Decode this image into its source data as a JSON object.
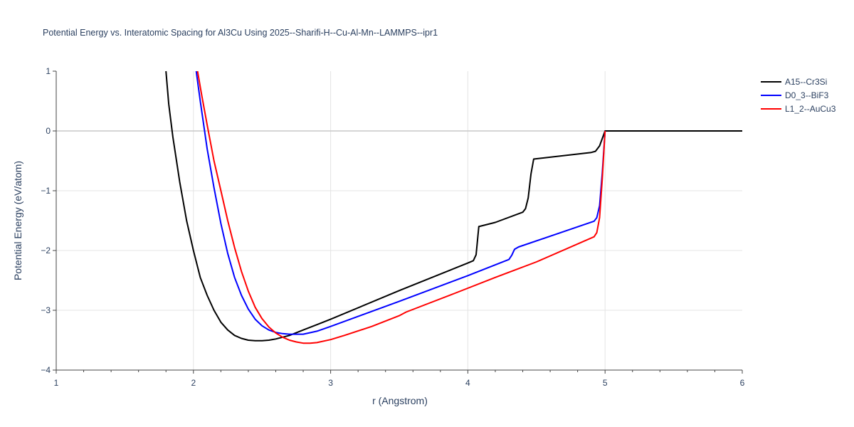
{
  "chart_data": {
    "type": "line",
    "title": "Potential Energy vs. Interatomic Spacing for Al3Cu Using 2025--Sharifi-H--Cu-Al-Mn--LAMMPS--ipr1",
    "xlabel": "r (Angstrom)",
    "ylabel": "Potential Energy (eV/atom)",
    "xlim": [
      1,
      6
    ],
    "ylim": [
      -4,
      1
    ],
    "x_ticks": [
      "1",
      "2",
      "3",
      "4",
      "5",
      "6"
    ],
    "y_ticks": [
      "1",
      "0",
      "−1",
      "−2",
      "−3",
      "−4"
    ],
    "grid": true,
    "legend_position": "top-right",
    "series": [
      {
        "name": "A15--Cr3Si",
        "color": "#000000",
        "points": [
          [
            1.8,
            1.0
          ],
          [
            1.82,
            0.45
          ],
          [
            1.85,
            -0.1
          ],
          [
            1.9,
            -0.85
          ],
          [
            1.95,
            -1.5
          ],
          [
            2.0,
            -2.0
          ],
          [
            2.05,
            -2.45
          ],
          [
            2.1,
            -2.75
          ],
          [
            2.15,
            -3.0
          ],
          [
            2.2,
            -3.2
          ],
          [
            2.25,
            -3.33
          ],
          [
            2.3,
            -3.42
          ],
          [
            2.35,
            -3.47
          ],
          [
            2.4,
            -3.5
          ],
          [
            2.45,
            -3.51
          ],
          [
            2.5,
            -3.51
          ],
          [
            2.55,
            -3.5
          ],
          [
            2.6,
            -3.48
          ],
          [
            2.7,
            -3.42
          ],
          [
            2.8,
            -3.33
          ],
          [
            2.9,
            -3.24
          ],
          [
            3.0,
            -3.15
          ],
          [
            3.5,
            -2.67
          ],
          [
            4.0,
            -2.21
          ],
          [
            4.04,
            -2.17
          ],
          [
            4.06,
            -2.07
          ],
          [
            4.08,
            -1.6
          ],
          [
            4.2,
            -1.53
          ],
          [
            4.4,
            -1.36
          ],
          [
            4.42,
            -1.3
          ],
          [
            4.44,
            -1.12
          ],
          [
            4.46,
            -0.72
          ],
          [
            4.48,
            -0.47
          ],
          [
            4.9,
            -0.36
          ],
          [
            4.93,
            -0.34
          ],
          [
            4.96,
            -0.25
          ],
          [
            5.0,
            0.0
          ],
          [
            6.0,
            0.0
          ]
        ]
      },
      {
        "name": "D0_3--BiF3",
        "color": "#0000ff",
        "points": [
          [
            2.02,
            1.0
          ],
          [
            2.05,
            0.5
          ],
          [
            2.1,
            -0.3
          ],
          [
            2.15,
            -0.95
          ],
          [
            2.2,
            -1.55
          ],
          [
            2.25,
            -2.05
          ],
          [
            2.3,
            -2.45
          ],
          [
            2.35,
            -2.75
          ],
          [
            2.4,
            -2.98
          ],
          [
            2.45,
            -3.15
          ],
          [
            2.5,
            -3.26
          ],
          [
            2.55,
            -3.33
          ],
          [
            2.6,
            -3.37
          ],
          [
            2.65,
            -3.39
          ],
          [
            2.7,
            -3.4
          ],
          [
            2.8,
            -3.4
          ],
          [
            2.9,
            -3.35
          ],
          [
            3.0,
            -3.27
          ],
          [
            3.5,
            -2.85
          ],
          [
            4.0,
            -2.42
          ],
          [
            4.3,
            -2.15
          ],
          [
            4.32,
            -2.08
          ],
          [
            4.34,
            -1.98
          ],
          [
            4.37,
            -1.94
          ],
          [
            4.92,
            -1.51
          ],
          [
            4.94,
            -1.45
          ],
          [
            4.96,
            -1.25
          ],
          [
            4.98,
            -0.7
          ],
          [
            5.0,
            0.0
          ]
        ]
      },
      {
        "name": "L1_2--AuCu3",
        "color": "#ff0000",
        "points": [
          [
            2.03,
            1.0
          ],
          [
            2.06,
            0.6
          ],
          [
            2.1,
            0.1
          ],
          [
            2.15,
            -0.5
          ],
          [
            2.2,
            -1.0
          ],
          [
            2.25,
            -1.5
          ],
          [
            2.3,
            -1.95
          ],
          [
            2.35,
            -2.35
          ],
          [
            2.4,
            -2.68
          ],
          [
            2.45,
            -2.95
          ],
          [
            2.5,
            -3.14
          ],
          [
            2.55,
            -3.28
          ],
          [
            2.6,
            -3.38
          ],
          [
            2.65,
            -3.45
          ],
          [
            2.7,
            -3.5
          ],
          [
            2.75,
            -3.53
          ],
          [
            2.8,
            -3.55
          ],
          [
            2.85,
            -3.55
          ],
          [
            2.9,
            -3.54
          ],
          [
            3.0,
            -3.49
          ],
          [
            3.1,
            -3.42
          ],
          [
            3.3,
            -3.27
          ],
          [
            3.5,
            -3.09
          ],
          [
            3.55,
            -3.03
          ],
          [
            3.9,
            -2.72
          ],
          [
            4.2,
            -2.45
          ],
          [
            4.5,
            -2.19
          ],
          [
            4.92,
            -1.77
          ],
          [
            4.94,
            -1.7
          ],
          [
            4.96,
            -1.45
          ],
          [
            4.98,
            -0.8
          ],
          [
            5.0,
            0.0
          ]
        ]
      }
    ]
  }
}
